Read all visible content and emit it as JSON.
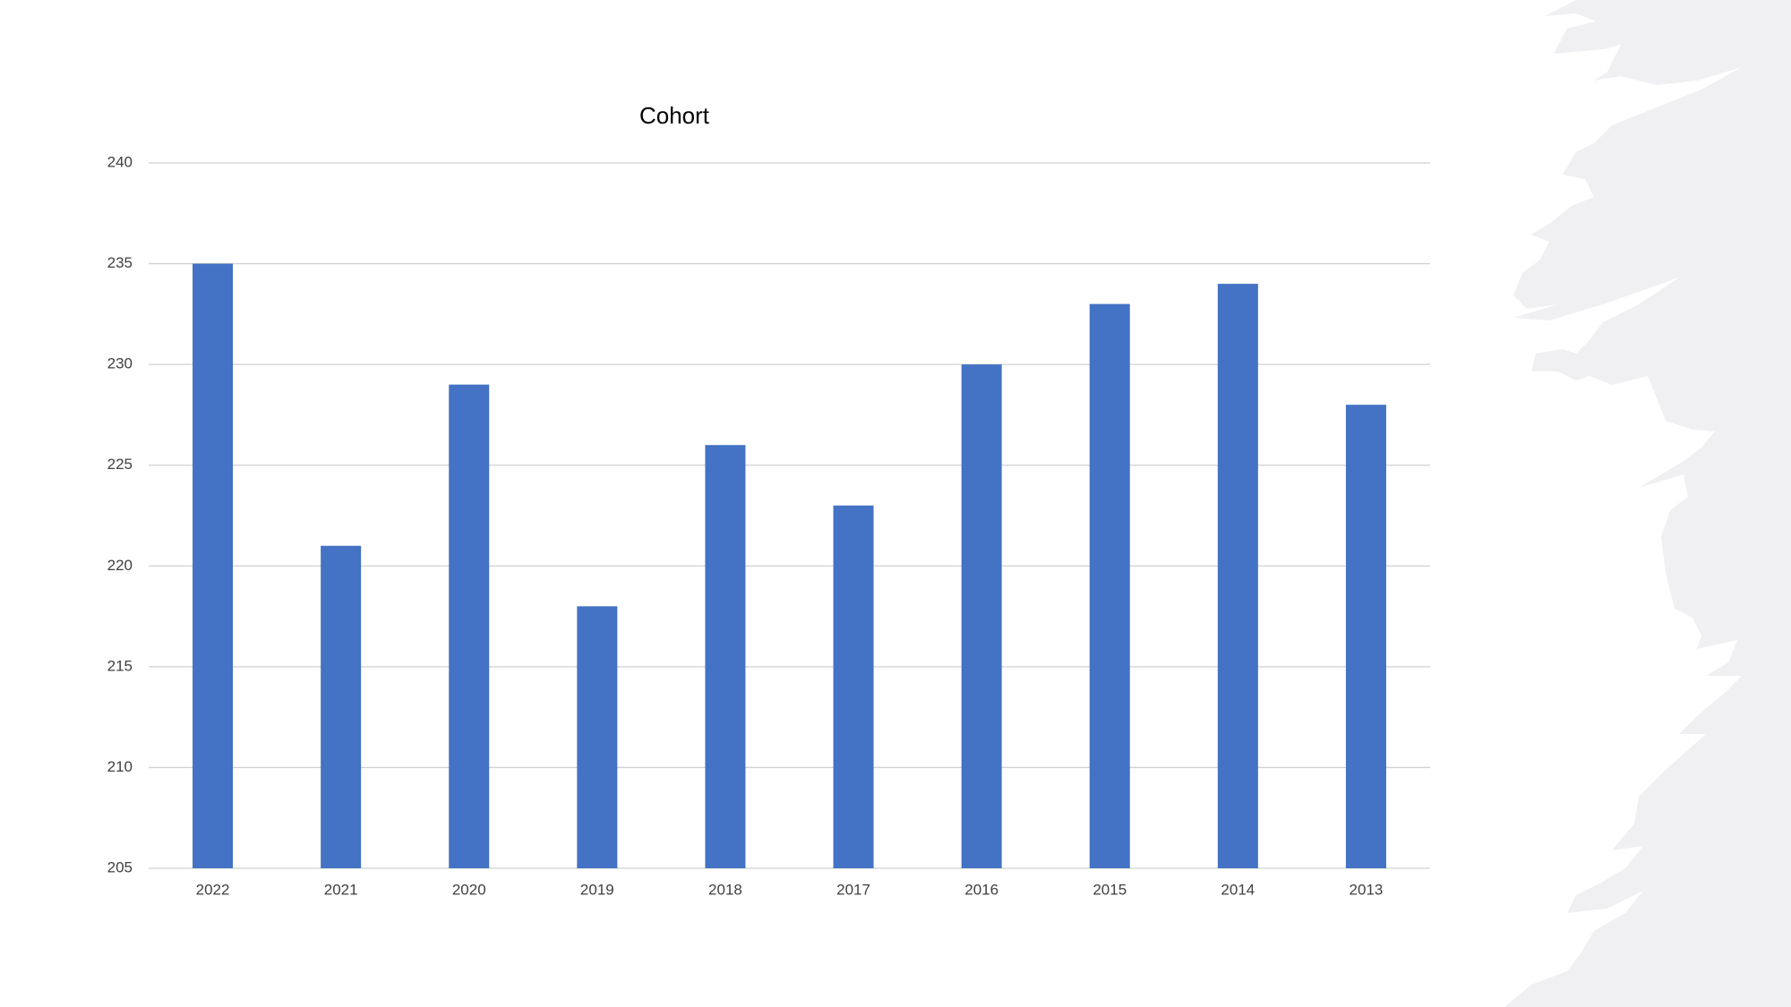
{
  "chart_data": {
    "type": "bar",
    "title": "Cohort",
    "categories": [
      "2022",
      "2021",
      "2020",
      "2019",
      "2018",
      "2017",
      "2016",
      "2015",
      "2014",
      "2013"
    ],
    "values": [
      235,
      221,
      229,
      218,
      226,
      223,
      230,
      233,
      234,
      228
    ],
    "color": "#4472c4",
    "ylim": [
      205,
      240
    ],
    "yticks": [
      205,
      210,
      215,
      220,
      225,
      230,
      235,
      240
    ],
    "grid": true
  }
}
